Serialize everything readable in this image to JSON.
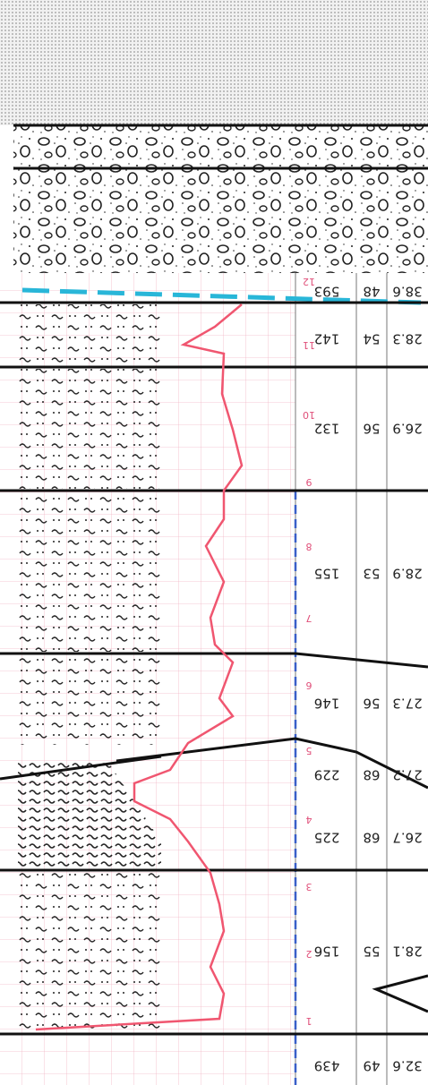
{
  "depth_marks": [
    12,
    11,
    10,
    9,
    8,
    7,
    6,
    5,
    4,
    3,
    2,
    1
  ],
  "table": {
    "rows": [
      [
        593,
        48,
        38.6
      ],
      [
        142,
        54,
        28.3
      ],
      [
        132,
        56,
        26.9
      ],
      [
        155,
        53,
        28.9
      ],
      [
        146,
        56,
        27.3
      ],
      [
        229,
        68,
        27.2
      ],
      [
        225,
        68,
        26.7
      ],
      [
        156,
        55,
        28.1
      ],
      [
        439,
        49,
        32.6
      ]
    ]
  }
}
